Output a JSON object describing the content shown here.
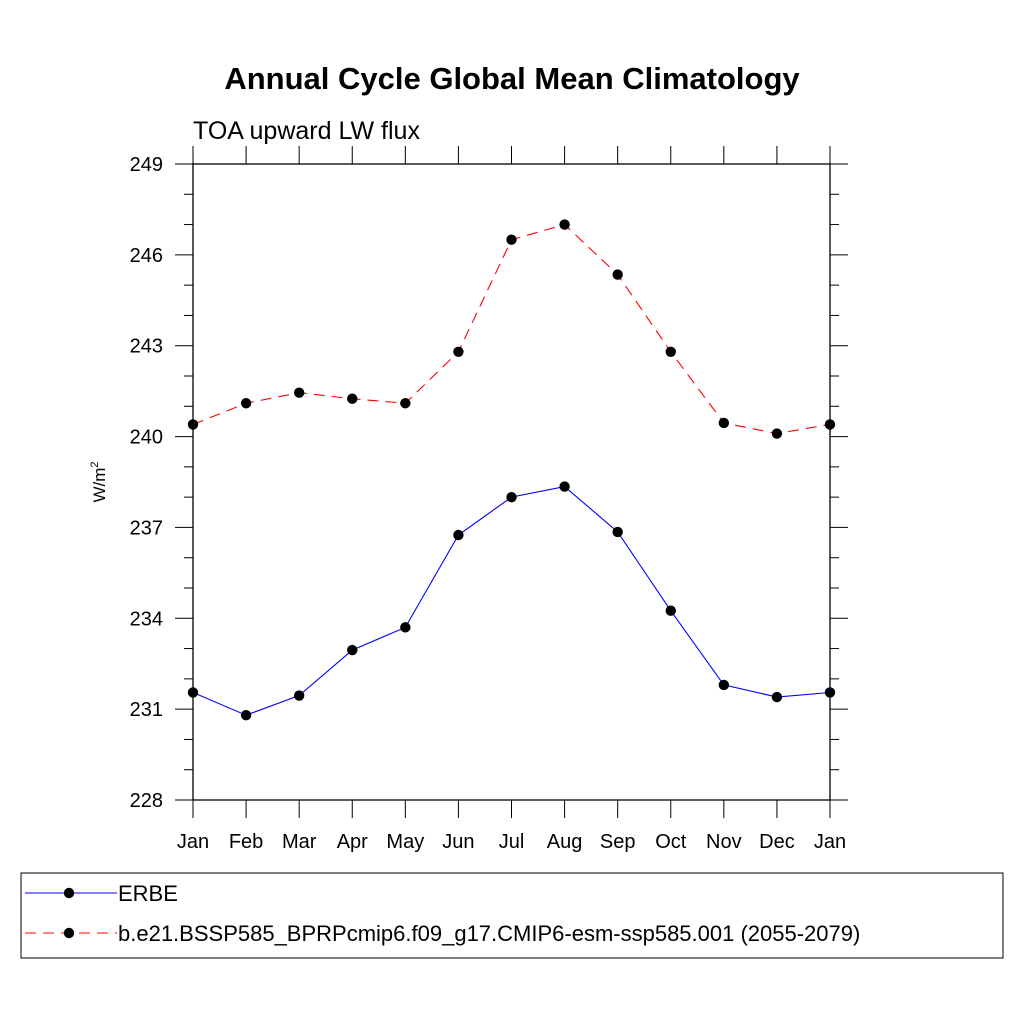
{
  "chart_data": {
    "type": "line",
    "title": "Annual Cycle Global Mean Climatology",
    "subtitle": "TOA upward LW flux",
    "xlabel": "",
    "ylabel": "W/m",
    "ylabel_superscript": "2",
    "categories": [
      "Jan",
      "Feb",
      "Mar",
      "Apr",
      "May",
      "Jun",
      "Jul",
      "Aug",
      "Sep",
      "Oct",
      "Nov",
      "Dec",
      "Jan"
    ],
    "ylim": [
      228,
      249
    ],
    "yticks": [
      228,
      231,
      234,
      237,
      240,
      243,
      246,
      249
    ],
    "grid": false,
    "legend_position": "bottom",
    "series": [
      {
        "name": "ERBE",
        "color": "#0000ff",
        "dash": "solid",
        "marker": "filled-circle",
        "values": [
          231.55,
          230.8,
          231.45,
          232.95,
          233.7,
          236.75,
          238.0,
          238.35,
          236.85,
          234.25,
          231.8,
          231.4,
          231.55
        ]
      },
      {
        "name": "b.e21.BSSP585_BPRPcmip6.f09_g17.CMIP6-esm-ssp585.001 (2055-2079)",
        "color": "#ff0000",
        "dash": "dashed",
        "marker": "filled-circle",
        "values": [
          240.4,
          241.1,
          241.45,
          241.25,
          241.1,
          242.8,
          246.5,
          247.0,
          245.35,
          242.8,
          240.45,
          240.1,
          240.4
        ]
      }
    ]
  }
}
